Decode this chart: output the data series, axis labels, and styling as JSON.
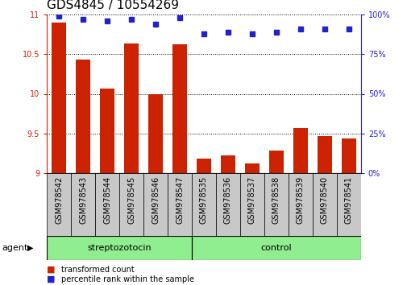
{
  "title": "GDS4845 / 10554269",
  "samples": [
    "GSM978542",
    "GSM978543",
    "GSM978544",
    "GSM978545",
    "GSM978546",
    "GSM978547",
    "GSM978535",
    "GSM978536",
    "GSM978537",
    "GSM978538",
    "GSM978539",
    "GSM978540",
    "GSM978541"
  ],
  "red_values": [
    10.9,
    10.43,
    10.07,
    10.63,
    10.0,
    10.62,
    9.18,
    9.22,
    9.12,
    9.28,
    9.57,
    9.47,
    9.44
  ],
  "blue_values": [
    99,
    97,
    96,
    97,
    94,
    98,
    88,
    89,
    88,
    89,
    91,
    91,
    91
  ],
  "groups": [
    {
      "label": "streptozotocin",
      "start": 0,
      "end": 6
    },
    {
      "label": "control",
      "start": 6,
      "end": 13
    }
  ],
  "group_color": "#90EE90",
  "group_label": "agent",
  "ylim_left": [
    9,
    11
  ],
  "ylim_right": [
    0,
    100
  ],
  "yticks_left": [
    9,
    9.5,
    10,
    10.5,
    11
  ],
  "yticks_right": [
    0,
    25,
    50,
    75,
    100
  ],
  "ytick_labels_right": [
    "0%",
    "25%",
    "50%",
    "75%",
    "100%"
  ],
  "bar_color": "#CC2200",
  "dot_color": "#2222CC",
  "tick_box_color": "#C8C8C8",
  "bar_width": 0.6,
  "title_fontsize": 11,
  "tick_fontsize": 7,
  "label_fontsize": 8
}
